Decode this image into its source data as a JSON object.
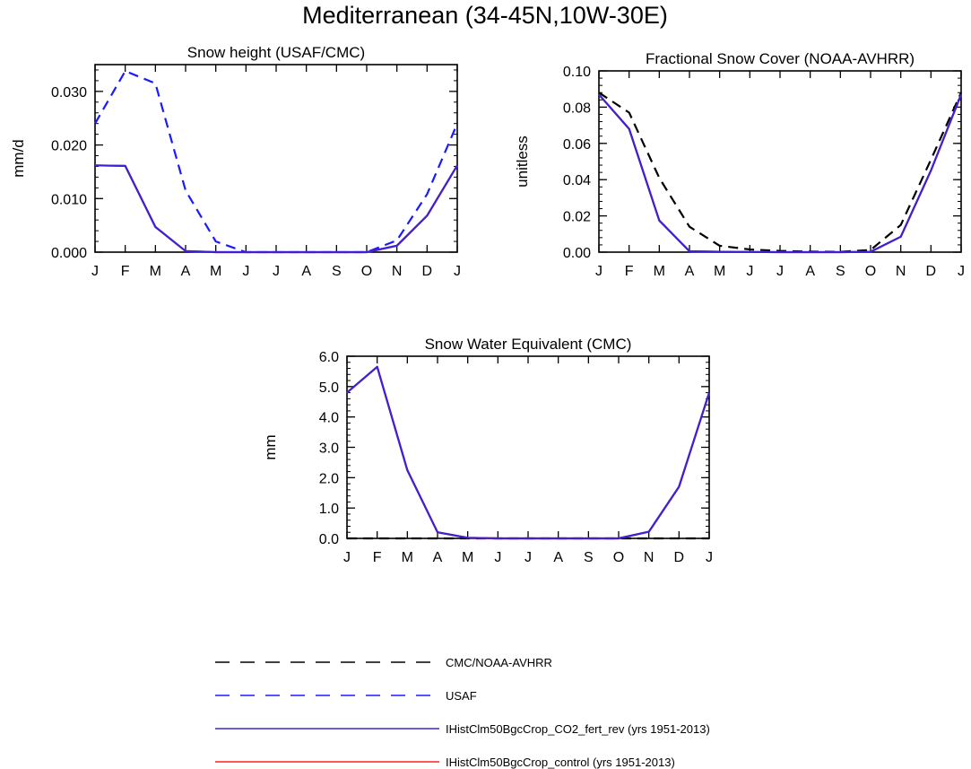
{
  "title": "Mediterranean (34-45N,10W-30E)",
  "colors": {
    "obs_cmc": "#000000",
    "obs_usaf": "#1a1aff",
    "co2_fert_rev": "#3a22d6",
    "control": "#ff2020"
  },
  "legend": [
    {
      "key": "cmc",
      "label": "CMC/NOAA-AVHRR",
      "color": "#000000",
      "dash": true
    },
    {
      "key": "usaf",
      "label": "USAF",
      "color": "#1a1aff",
      "dash": true
    },
    {
      "key": "co2",
      "label": "IHistClm50BgcCrop_CO2_fert_rev (yrs 1951-2013)",
      "color": "#3a22d6",
      "dash": false
    },
    {
      "key": "control",
      "label": "IHistClm50BgcCrop_control (yrs 1951-2013)",
      "color": "#ff2020",
      "dash": false
    }
  ],
  "chart_data": [
    {
      "type": "line",
      "title": "Snow height (USAF/CMC)",
      "xlabel": "",
      "ylabel": "mm/d",
      "categories": [
        "J",
        "F",
        "M",
        "A",
        "M",
        "J",
        "J",
        "A",
        "S",
        "O",
        "N",
        "D",
        "J"
      ],
      "ylim": [
        0,
        0.035
      ],
      "yticks": [
        "0.000",
        "0.010",
        "0.020",
        "0.030"
      ],
      "series": [
        {
          "name": "USAF",
          "dash": true,
          "color": "#1a1aff",
          "values": [
            0.024,
            0.0338,
            0.0315,
            0.0115,
            0.002,
            0.0,
            0.0,
            0.0,
            0.0,
            0.0,
            0.0022,
            0.0108,
            0.024
          ]
        },
        {
          "name": "IHistClm50BgcCrop_control (yrs 1951-2013)",
          "dash": false,
          "color": "#ff2020",
          "values": [
            0.0162,
            0.0161,
            0.0047,
            0.0002,
            0.0,
            0.0,
            0.0,
            0.0,
            0.0,
            0.0,
            0.0012,
            0.0068,
            0.0162
          ]
        },
        {
          "name": "IHistClm50BgcCrop_CO2_fert_rev (yrs 1951-2013)",
          "dash": false,
          "color": "#3a22d6",
          "values": [
            0.0162,
            0.0161,
            0.0047,
            0.0002,
            0.0,
            0.0,
            0.0,
            0.0,
            0.0,
            0.0,
            0.0012,
            0.0068,
            0.0162
          ]
        }
      ]
    },
    {
      "type": "line",
      "title": "Fractional Snow Cover (NOAA-AVHRR)",
      "xlabel": "",
      "ylabel": "unitless",
      "categories": [
        "J",
        "F",
        "M",
        "A",
        "M",
        "J",
        "J",
        "A",
        "S",
        "O",
        "N",
        "D",
        "J"
      ],
      "ylim": [
        0,
        0.1
      ],
      "yticks": [
        "0.00",
        "0.02",
        "0.04",
        "0.06",
        "0.08",
        "0.10"
      ],
      "series": [
        {
          "name": "CMC/NOAA-AVHRR",
          "dash": true,
          "color": "#000000",
          "values": [
            0.088,
            0.077,
            0.041,
            0.014,
            0.0035,
            0.0015,
            0.0007,
            0.0003,
            0.0002,
            0.0012,
            0.015,
            0.051,
            0.088
          ]
        },
        {
          "name": "IHistClm50BgcCrop_control (yrs 1951-2013)",
          "dash": false,
          "color": "#ff2020",
          "values": [
            0.087,
            0.068,
            0.0175,
            0.0005,
            0.0002,
            0.0001,
            0.0,
            0.0,
            0.0,
            0.0002,
            0.0085,
            0.045,
            0.087
          ]
        },
        {
          "name": "IHistClm50BgcCrop_CO2_fert_rev (yrs 1951-2013)",
          "dash": false,
          "color": "#3a22d6",
          "values": [
            0.087,
            0.068,
            0.0175,
            0.0005,
            0.0002,
            0.0001,
            0.0,
            0.0,
            0.0,
            0.0002,
            0.0085,
            0.045,
            0.087
          ]
        }
      ]
    },
    {
      "type": "line",
      "title": "Snow Water Equivalent (CMC)",
      "xlabel": "",
      "ylabel": "mm",
      "categories": [
        "J",
        "F",
        "M",
        "A",
        "M",
        "J",
        "J",
        "A",
        "S",
        "O",
        "N",
        "D",
        "J"
      ],
      "ylim": [
        0,
        6.0
      ],
      "yticks": [
        "0.0",
        "1.0",
        "2.0",
        "3.0",
        "4.0",
        "5.0",
        "6.0"
      ],
      "series": [
        {
          "name": "CMC/NOAA-AVHRR",
          "dash": true,
          "color": "#000000",
          "values": [
            0,
            0,
            0,
            0,
            0,
            0,
            0,
            0,
            0,
            0,
            0,
            0,
            0
          ]
        },
        {
          "name": "IHistClm50BgcCrop_control (yrs 1951-2013)",
          "dash": false,
          "color": "#ff2020",
          "values": [
            4.8,
            5.65,
            2.25,
            0.2,
            0.02,
            0.0,
            0.0,
            0.0,
            0.0,
            0.0,
            0.22,
            1.7,
            4.8
          ]
        },
        {
          "name": "IHistClm50BgcCrop_CO2_fert_rev (yrs 1951-2013)",
          "dash": false,
          "color": "#3a22d6",
          "values": [
            4.8,
            5.65,
            2.25,
            0.2,
            0.02,
            0.0,
            0.0,
            0.0,
            0.0,
            0.0,
            0.22,
            1.7,
            4.8
          ]
        }
      ]
    }
  ]
}
